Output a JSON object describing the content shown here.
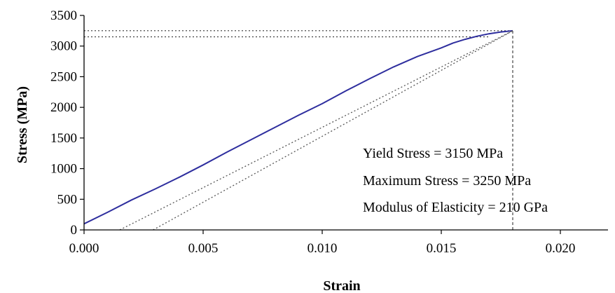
{
  "chart_data": {
    "type": "line",
    "title": "",
    "xlabel": "Strain",
    "ylabel": "Stress (MPa)",
    "xlim": [
      0.0,
      0.022
    ],
    "ylim": [
      0,
      3500
    ],
    "xticks": [
      0.0,
      0.005,
      0.01,
      0.015,
      0.02
    ],
    "xtick_labels": [
      "0.000",
      "0.005",
      "0.010",
      "0.015",
      "0.020"
    ],
    "yticks": [
      0,
      500,
      1000,
      1500,
      2000,
      2500,
      3000,
      3500
    ],
    "ytick_labels": [
      "0",
      "500",
      "1000",
      "1500",
      "2000",
      "2500",
      "3000",
      "3500"
    ],
    "grid": false,
    "series": [
      {
        "style": "solid",
        "color": "#2e2e9e",
        "x": [
          0.0,
          0.001,
          0.002,
          0.003,
          0.004,
          0.005,
          0.006,
          0.007,
          0.008,
          0.009,
          0.01,
          0.011,
          0.012,
          0.013,
          0.014,
          0.015,
          0.0155,
          0.016,
          0.0165,
          0.017,
          0.0175,
          0.018
        ],
        "y": [
          100,
          290,
          490,
          670,
          860,
          1060,
          1270,
          1470,
          1670,
          1870,
          2060,
          2270,
          2470,
          2660,
          2830,
          2970,
          3050,
          3110,
          3160,
          3200,
          3230,
          3250
        ]
      },
      {
        "style": "dotted",
        "color": "#555555",
        "x": [
          0.0015,
          0.018
        ],
        "y": [
          0,
          3250
        ]
      },
      {
        "style": "dotted",
        "color": "#555555",
        "x": [
          0.0029,
          0.018
        ],
        "y": [
          0,
          3250
        ]
      }
    ],
    "reference_lines": [
      {
        "orientation": "horizontal",
        "y": 3250,
        "x_from": 0.0,
        "x_to": 0.018,
        "style": "dotted"
      },
      {
        "orientation": "horizontal",
        "y": 3150,
        "x_from": 0.0,
        "x_to": 0.017,
        "style": "dotted"
      },
      {
        "orientation": "vertical",
        "x": 0.018,
        "y_from": 0,
        "y_to": 3250,
        "style": "dashed"
      }
    ],
    "annotations": [
      "Yield Stress = 3150 MPa",
      "Maximum Stress = 3250 MPa",
      "Modulus of Elasticity = 210 GPa"
    ]
  }
}
